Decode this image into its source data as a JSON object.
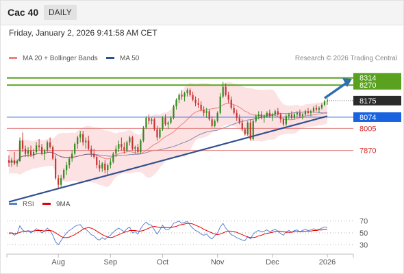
{
  "header": {
    "title": "Cac 40",
    "period": "DAILY"
  },
  "datetime": "Friday, January 2, 2026 9:41:58 AM CET",
  "legend": [
    {
      "label": "MA 20 + Bollinger Bands",
      "color": "#f08080"
    },
    {
      "label": "MA 50",
      "color": "#2f4f8f"
    }
  ],
  "credit": "Research © 2026 Trading Central",
  "rsi_legend": [
    {
      "label": "RSI",
      "color": "#5b7fd6"
    },
    {
      "label": "9MA",
      "color": "#e00000"
    }
  ],
  "colors": {
    "up": "#2e8b1f",
    "down": "#c83232",
    "band": "#fbd8d8",
    "ma20": "#f08080",
    "ma50": "#2f4f8f",
    "resistance": "#59a11f",
    "support_line": "#e07a7a",
    "pivot": "#4a7fe0",
    "trend": "#2f4f8f",
    "arrow": "#2f6fb0",
    "current_label": "#2b2b2b",
    "pivot_label": "#1a63e0"
  },
  "chart_data": [
    {
      "type": "candlestick",
      "title": "",
      "x_ticks": [
        "Aug",
        "Sep",
        "Oct",
        "Nov",
        "Dec",
        "2026"
      ],
      "ylim": [
        7600,
        8380
      ],
      "levels": [
        {
          "value": 8314,
          "label": "8314",
          "kind": "resistance"
        },
        {
          "value": 8270,
          "label": "8270",
          "kind": "resistance"
        },
        {
          "value": 8175,
          "label": "8175",
          "kind": "current"
        },
        {
          "value": 8074,
          "label": "8074",
          "kind": "pivot"
        },
        {
          "value": 8005,
          "label": "8005",
          "kind": "support"
        },
        {
          "value": 7870,
          "label": "7870",
          "kind": "support"
        }
      ],
      "trendline": {
        "from_bar": 0,
        "from_value": 7555,
        "to_bar": 116,
        "to_value": 8080
      },
      "target_arrow": {
        "from_bar": 115,
        "from_value": 8190,
        "to_bar": 126,
        "to_value": 8300
      },
      "ohlc": [
        [
          7810,
          7840,
          7770,
          7795
        ],
        [
          7795,
          7825,
          7770,
          7810
        ],
        [
          7810,
          7860,
          7780,
          7790
        ],
        [
          7790,
          7815,
          7770,
          7805
        ],
        [
          7805,
          7950,
          7800,
          7930
        ],
        [
          7930,
          7980,
          7860,
          7880
        ],
        [
          7880,
          7900,
          7830,
          7850
        ],
        [
          7850,
          7890,
          7830,
          7870
        ],
        [
          7870,
          7900,
          7830,
          7840
        ],
        [
          7840,
          7880,
          7820,
          7860
        ],
        [
          7860,
          7920,
          7850,
          7900
        ],
        [
          7900,
          7940,
          7870,
          7890
        ],
        [
          7890,
          7910,
          7840,
          7850
        ],
        [
          7850,
          7880,
          7810,
          7870
        ],
        [
          7870,
          7930,
          7860,
          7920
        ],
        [
          7920,
          7950,
          7880,
          7890
        ],
        [
          7890,
          7900,
          7810,
          7820
        ],
        [
          7820,
          7840,
          7690,
          7700
        ],
        [
          7700,
          7720,
          7640,
          7660
        ],
        [
          7660,
          7720,
          7640,
          7700
        ],
        [
          7700,
          7760,
          7690,
          7750
        ],
        [
          7750,
          7800,
          7720,
          7780
        ],
        [
          7780,
          7830,
          7760,
          7820
        ],
        [
          7820,
          7870,
          7800,
          7850
        ],
        [
          7850,
          7920,
          7840,
          7910
        ],
        [
          7910,
          7960,
          7880,
          7950
        ],
        [
          7950,
          7990,
          7920,
          7970
        ],
        [
          7970,
          7990,
          7900,
          7920
        ],
        [
          7920,
          7950,
          7880,
          7930
        ],
        [
          7930,
          7960,
          7870,
          7880
        ],
        [
          7880,
          7900,
          7830,
          7850
        ],
        [
          7850,
          7880,
          7820,
          7830
        ],
        [
          7830,
          7840,
          7760,
          7780
        ],
        [
          7780,
          7810,
          7740,
          7760
        ],
        [
          7760,
          7800,
          7740,
          7790
        ],
        [
          7790,
          7810,
          7730,
          7750
        ],
        [
          7750,
          7790,
          7720,
          7780
        ],
        [
          7780,
          7820,
          7760,
          7800
        ],
        [
          7800,
          7860,
          7790,
          7850
        ],
        [
          7850,
          7900,
          7830,
          7880
        ],
        [
          7880,
          7930,
          7860,
          7910
        ],
        [
          7910,
          7950,
          7870,
          7890
        ],
        [
          7890,
          7920,
          7850,
          7870
        ],
        [
          7870,
          7930,
          7860,
          7920
        ],
        [
          7920,
          7960,
          7900,
          7950
        ],
        [
          7950,
          7960,
          7870,
          7880
        ],
        [
          7880,
          7900,
          7850,
          7890
        ],
        [
          7890,
          7910,
          7850,
          7860
        ],
        [
          7860,
          7940,
          7850,
          7930
        ],
        [
          7930,
          8020,
          7920,
          8010
        ],
        [
          8010,
          8080,
          8000,
          8070
        ],
        [
          8070,
          8090,
          8030,
          8050
        ],
        [
          8050,
          8070,
          8030,
          8060
        ],
        [
          8060,
          8070,
          7990,
          8000
        ],
        [
          8000,
          8020,
          7930,
          7950
        ],
        [
          7950,
          8010,
          7940,
          8000
        ],
        [
          8000,
          8080,
          7990,
          8070
        ],
        [
          8070,
          8090,
          8020,
          8030
        ],
        [
          8030,
          8050,
          8000,
          8040
        ],
        [
          8040,
          8080,
          8030,
          8070
        ],
        [
          8070,
          8150,
          8060,
          8140
        ],
        [
          8140,
          8190,
          8120,
          8180
        ],
        [
          8180,
          8220,
          8160,
          8210
        ],
        [
          8210,
          8240,
          8180,
          8200
        ],
        [
          8200,
          8230,
          8170,
          8220
        ],
        [
          8220,
          8250,
          8200,
          8240
        ],
        [
          8240,
          8250,
          8200,
          8210
        ],
        [
          8210,
          8230,
          8170,
          8180
        ],
        [
          8180,
          8200,
          8140,
          8160
        ],
        [
          8160,
          8190,
          8130,
          8150
        ],
        [
          8150,
          8170,
          8110,
          8120
        ],
        [
          8120,
          8140,
          8080,
          8100
        ],
        [
          8100,
          8130,
          8070,
          8110
        ],
        [
          8110,
          8120,
          8050,
          8060
        ],
        [
          8060,
          8080,
          8010,
          8020
        ],
        [
          8020,
          8060,
          8010,
          8050
        ],
        [
          8050,
          8110,
          8040,
          8100
        ],
        [
          8100,
          8220,
          8090,
          8200
        ],
        [
          8200,
          8290,
          8190,
          8260
        ],
        [
          8260,
          8280,
          8200,
          8210
        ],
        [
          8210,
          8230,
          8160,
          8180
        ],
        [
          8180,
          8200,
          8120,
          8130
        ],
        [
          8130,
          8150,
          8090,
          8100
        ],
        [
          8100,
          8120,
          8050,
          8070
        ],
        [
          8070,
          8090,
          8030,
          8040
        ],
        [
          8040,
          8060,
          7990,
          8000
        ],
        [
          8000,
          8010,
          7960,
          7970
        ],
        [
          7970,
          8050,
          7960,
          8040
        ],
        [
          8040,
          8060,
          7930,
          7940
        ],
        [
          7940,
          8060,
          7930,
          8050
        ],
        [
          8050,
          8090,
          8040,
          8080
        ],
        [
          8080,
          8110,
          8060,
          8090
        ],
        [
          8090,
          8110,
          8060,
          8070
        ],
        [
          8070,
          8090,
          8040,
          8080
        ],
        [
          8080,
          8110,
          8070,
          8100
        ],
        [
          8100,
          8120,
          8070,
          8080
        ],
        [
          8080,
          8100,
          8050,
          8090
        ],
        [
          8090,
          8120,
          8080,
          8110
        ],
        [
          8110,
          8130,
          8080,
          8090
        ],
        [
          8090,
          8100,
          8040,
          8060
        ],
        [
          8060,
          8070,
          8020,
          8030
        ],
        [
          8030,
          8090,
          8020,
          8080
        ],
        [
          8080,
          8100,
          8060,
          8090
        ],
        [
          8090,
          8110,
          8060,
          8070
        ],
        [
          8070,
          8100,
          8060,
          8090
        ],
        [
          8090,
          8110,
          8070,
          8100
        ],
        [
          8100,
          8120,
          8070,
          8080
        ],
        [
          8080,
          8100,
          8060,
          8090
        ],
        [
          8090,
          8120,
          8080,
          8110
        ],
        [
          8110,
          8130,
          8090,
          8100
        ],
        [
          8100,
          8120,
          8080,
          8110
        ],
        [
          8110,
          8140,
          8100,
          8130
        ],
        [
          8130,
          8150,
          8110,
          8120
        ],
        [
          8120,
          8140,
          8100,
          8130
        ],
        [
          8130,
          8160,
          8120,
          8150
        ],
        [
          8150,
          8180,
          8140,
          8170
        ],
        [
          8170,
          8190,
          8150,
          8175
        ]
      ],
      "rsi": {
        "ylim": [
          20,
          80
        ],
        "ticks": [
          70,
          50,
          30
        ],
        "rsi": [
          48,
          50,
          46,
          49,
          62,
          55,
          52,
          54,
          50,
          53,
          57,
          55,
          50,
          53,
          58,
          54,
          46,
          35,
          30,
          37,
          44,
          50,
          54,
          57,
          61,
          63,
          64,
          58,
          56,
          52,
          47,
          45,
          40,
          38,
          42,
          39,
          43,
          46,
          51,
          55,
          58,
          55,
          52,
          57,
          60,
          50,
          52,
          48,
          57,
          64,
          68,
          64,
          63,
          55,
          48,
          55,
          63,
          56,
          55,
          59,
          66,
          68,
          70,
          66,
          68,
          69,
          63,
          58,
          54,
          52,
          48,
          46,
          48,
          43,
          40,
          45,
          50,
          60,
          66,
          58,
          53,
          47,
          45,
          42,
          40,
          38,
          37,
          44,
          40,
          48,
          52,
          54,
          52,
          53,
          55,
          52,
          54,
          56,
          53,
          49,
          46,
          52,
          54,
          51,
          54,
          55,
          52,
          54,
          56,
          54,
          55,
          57,
          55,
          56,
          58,
          60,
          59
        ],
        "ma": [
          50,
          50,
          49,
          49,
          51,
          52,
          53,
          53,
          53,
          53,
          54,
          54,
          54,
          53,
          54,
          54,
          53,
          50,
          47,
          44,
          42,
          42,
          43,
          45,
          47,
          50,
          53,
          56,
          58,
          59,
          58,
          56,
          53,
          50,
          47,
          45,
          43,
          42,
          43,
          45,
          47,
          49,
          51,
          52,
          54,
          54,
          54,
          53,
          53,
          54,
          56,
          58,
          60,
          61,
          60,
          59,
          59,
          59,
          59,
          59,
          60,
          61,
          63,
          64,
          65,
          66,
          66,
          65,
          63,
          61,
          59,
          56,
          54,
          52,
          50,
          48,
          47,
          48,
          50,
          52,
          53,
          53,
          52,
          51,
          49,
          47,
          45,
          43,
          42,
          42,
          43,
          45,
          46,
          48,
          49,
          50,
          51,
          52,
          53,
          53,
          52,
          51,
          51,
          51,
          52,
          52,
          52,
          52,
          53,
          53,
          53,
          54,
          54,
          55,
          55,
          56,
          56
        ]
      }
    }
  ]
}
